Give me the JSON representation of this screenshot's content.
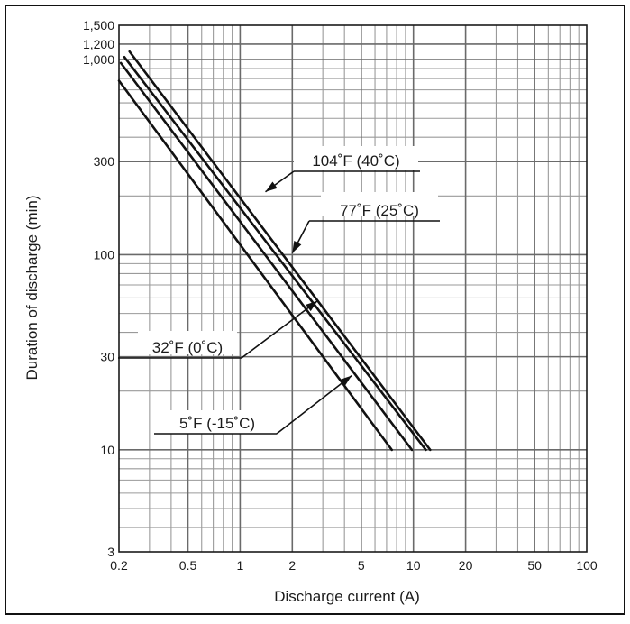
{
  "chart_data": {
    "type": "line",
    "title": "",
    "xlabel": "Discharge current (A)",
    "ylabel": "Duration of discharge (min)",
    "x_scale": "log",
    "y_scale": "log",
    "xlim": [
      0.2,
      100
    ],
    "ylim": [
      3,
      1500
    ],
    "grid": true,
    "x_tick_labels": [
      {
        "value": 0.2,
        "label": "0.2"
      },
      {
        "value": 0.5,
        "label": "0.5"
      },
      {
        "value": 1,
        "label": "1"
      },
      {
        "value": 2,
        "label": "2"
      },
      {
        "value": 5,
        "label": "5"
      },
      {
        "value": 10,
        "label": "10"
      },
      {
        "value": 20,
        "label": "20"
      },
      {
        "value": 50,
        "label": "50"
      },
      {
        "value": 100,
        "label": "100"
      }
    ],
    "y_tick_labels": [
      {
        "value": 3,
        "label": "3"
      },
      {
        "value": 10,
        "label": "10"
      },
      {
        "value": 30,
        "label": "30"
      },
      {
        "value": 100,
        "label": "100"
      },
      {
        "value": 300,
        "label": "300"
      },
      {
        "value": 1000,
        "label": "1,000"
      },
      {
        "value": 1200,
        "label": "1,200"
      },
      {
        "value": 1500,
        "label": "1,500"
      }
    ],
    "series": [
      {
        "name": "104˚F (40˚C)",
        "x": [
          0.23,
          12.5
        ],
        "y": [
          1100,
          10
        ]
      },
      {
        "name": "77˚F (25˚C)",
        "x": [
          0.215,
          11.8
        ],
        "y": [
          1030,
          10
        ]
      },
      {
        "name": "32˚F (0˚C)",
        "x": [
          0.205,
          9.8
        ],
        "y": [
          960,
          10
        ]
      },
      {
        "name": "5˚F (-15˚C)",
        "x": [
          0.2,
          7.5
        ],
        "y": [
          780,
          10
        ]
      }
    ],
    "annotations": [
      {
        "series": 0,
        "text": "104˚F (40˚C)",
        "arrow_to": {
          "x": 1.4,
          "y": 210
        }
      },
      {
        "series": 1,
        "text": "77˚F (25˚C)",
        "arrow_to": {
          "x": 2.0,
          "y": 102
        }
      },
      {
        "series": 2,
        "text": "32˚F (0˚C)",
        "arrow_to": {
          "x": 2.8,
          "y": 58
        }
      },
      {
        "series": 3,
        "text": "5˚F (-15˚C)",
        "arrow_to": {
          "x": 4.4,
          "y": 24
        }
      }
    ]
  }
}
